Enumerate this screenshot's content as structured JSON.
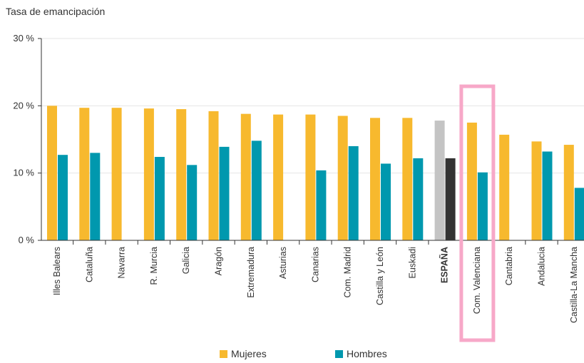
{
  "chart_data": {
    "type": "bar",
    "title": "Tasa de emancipación",
    "xlabel": "",
    "ylabel": "",
    "ylim": [
      0,
      30
    ],
    "yticks": [
      0,
      10,
      20,
      30
    ],
    "ytick_labels": [
      "0 %",
      "10 %",
      "20 %",
      "30 %"
    ],
    "grid": true,
    "legend_position": "bottom",
    "categories": [
      "Illes Balears",
      "Cataluña",
      "Navarra",
      "R. Murcia",
      "Galicia",
      "Aragón",
      "Extremadura",
      "Asturias",
      "Canarias",
      "Com. Madrid",
      "Castilla y León",
      "Euskadi",
      "ESPAÑA",
      "Com. Valenciana",
      "Cantabria",
      "Andalucia",
      "Castilla-La Mancha"
    ],
    "series": [
      {
        "name": "Mujeres",
        "color": "#F7B92E",
        "values": [
          20.0,
          19.7,
          19.7,
          19.6,
          19.5,
          19.2,
          18.8,
          18.7,
          18.7,
          18.5,
          18.2,
          18.2,
          17.8,
          17.5,
          15.7,
          14.7,
          14.2
        ]
      },
      {
        "name": "Hombres",
        "color": "#0098AE",
        "values": [
          12.7,
          13.0,
          null,
          12.4,
          11.2,
          13.9,
          14.8,
          null,
          10.4,
          14.0,
          11.4,
          12.2,
          12.2,
          10.1,
          null,
          13.2,
          7.8
        ]
      }
    ],
    "highlight": {
      "espana_colors": {
        "Mujeres": "#C4C4C4",
        "Hombres": "#333333"
      },
      "box_category": "Com. Valenciana",
      "box_color": "#F7A8C8"
    }
  }
}
